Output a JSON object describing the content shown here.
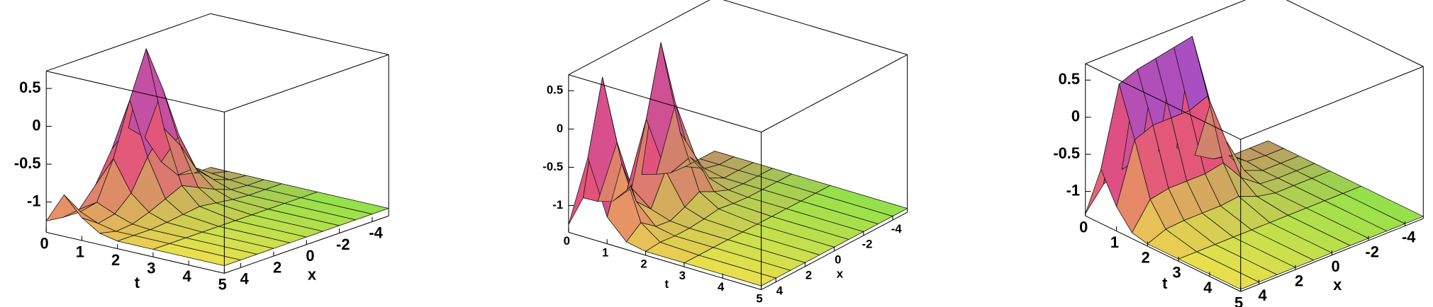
{
  "chart_data": [
    {
      "type": "surface",
      "tlabel": "t",
      "xlabel": "x",
      "tlim": [
        0,
        5
      ],
      "xlim": [
        -5,
        5
      ],
      "zlim": [
        -1.4,
        0.73
      ],
      "tticks": [
        0,
        1,
        2,
        3,
        4,
        5
      ],
      "xticks": [
        4,
        2,
        0,
        -2,
        -4
      ],
      "zticks": [
        0.5,
        0,
        -0.5,
        -1
      ],
      "colors": [
        "#8fe34a",
        "#ece24c",
        "#e4507c",
        "#8a4fe8"
      ],
      "t": [
        0,
        0.5,
        1,
        1.5,
        2,
        3,
        5
      ],
      "x": [
        5,
        4,
        3,
        2,
        1,
        0,
        -1,
        -2,
        -3,
        -4,
        -5
      ],
      "z": [
        [
          -1.25,
          -1.28,
          -1.25,
          -1.0,
          -0.6,
          -0.4,
          -0.6,
          -1.0,
          -1.25,
          -1.3,
          -1.3
        ],
        [
          -0.85,
          -1.15,
          -1.1,
          -0.6,
          0.1,
          0.7,
          0.1,
          -0.6,
          -1.1,
          -1.25,
          -1.3
        ],
        [
          -1.1,
          -1.25,
          -1.2,
          -1.0,
          -0.6,
          -0.3,
          -0.6,
          -1.0,
          -1.2,
          -1.28,
          -1.3
        ],
        [
          -1.25,
          -1.3,
          -1.28,
          -1.2,
          -1.1,
          -1.0,
          -1.1,
          -1.2,
          -1.28,
          -1.3,
          -1.3
        ],
        [
          -1.3,
          -1.3,
          -1.3,
          -1.28,
          -1.25,
          -1.22,
          -1.25,
          -1.28,
          -1.3,
          -1.3,
          -1.3
        ],
        [
          -1.3,
          -1.3,
          -1.3,
          -1.3,
          -1.3,
          -1.3,
          -1.3,
          -1.3,
          -1.3,
          -1.3,
          -1.3
        ],
        [
          -1.3,
          -1.3,
          -1.3,
          -1.3,
          -1.3,
          -1.3,
          -1.3,
          -1.3,
          -1.3,
          -1.3,
          -1.3
        ]
      ]
    },
    {
      "type": "surface",
      "tlabel": "t",
      "xlabel": "x",
      "tlim": [
        0,
        5
      ],
      "xlim": [
        -5,
        5
      ],
      "zlim": [
        -1.35,
        0.71
      ],
      "tticks": [
        0,
        1,
        2,
        3,
        4,
        5
      ],
      "xticks": [
        4,
        2,
        0,
        -2,
        -4
      ],
      "zticks": [
        0.5,
        0,
        -0.5,
        -1
      ],
      "colors": [
        "#8fe34a",
        "#ece24c",
        "#e4507c",
        "#8a4fe8"
      ],
      "t": [
        0,
        0.5,
        1,
        1.5,
        2,
        3,
        5
      ],
      "x": [
        5,
        4,
        3,
        2,
        1,
        0,
        -1,
        -2,
        -3,
        -4,
        -5
      ],
      "z": [
        [
          -1.25,
          -1.0,
          -1.15,
          -1.25,
          -1.2,
          -1.1,
          -1.2,
          -1.28,
          -1.3,
          -1.3,
          -1.3
        ],
        [
          -0.3,
          0.65,
          -0.3,
          -1.0,
          -0.2,
          0.7,
          -0.2,
          -1.0,
          -1.25,
          -1.3,
          -1.3
        ],
        [
          -1.0,
          -0.4,
          -1.0,
          -1.2,
          -0.8,
          -0.4,
          -0.8,
          -1.2,
          -1.3,
          -1.3,
          -1.3
        ],
        [
          -1.25,
          -1.1,
          -1.25,
          -1.28,
          -1.2,
          -1.1,
          -1.2,
          -1.28,
          -1.3,
          -1.3,
          -1.3
        ],
        [
          -1.3,
          -1.28,
          -1.3,
          -1.3,
          -1.28,
          -1.25,
          -1.28,
          -1.3,
          -1.3,
          -1.3,
          -1.3
        ],
        [
          -1.3,
          -1.3,
          -1.3,
          -1.3,
          -1.3,
          -1.3,
          -1.3,
          -1.3,
          -1.3,
          -1.3,
          -1.3
        ],
        [
          -1.3,
          -1.3,
          -1.3,
          -1.3,
          -1.3,
          -1.3,
          -1.3,
          -1.3,
          -1.3,
          -1.3,
          -1.3
        ]
      ]
    },
    {
      "type": "surface",
      "tlabel": "t",
      "xlabel": "x",
      "tlim": [
        0,
        5
      ],
      "xlim": [
        -5,
        5
      ],
      "zlim": [
        -1.33,
        0.72
      ],
      "tticks": [
        0,
        1,
        2,
        3,
        4,
        5
      ],
      "xticks": [
        4,
        2,
        0,
        -2,
        -4
      ],
      "zticks": [
        0.5,
        0,
        -0.5,
        -1
      ],
      "colors": [
        "#8fe34a",
        "#ece24c",
        "#e4507c",
        "#8a4fe8"
      ],
      "t": [
        0,
        0.5,
        1,
        1.5,
        2,
        3,
        5
      ],
      "x": [
        5,
        4,
        3,
        2,
        1,
        0,
        -1,
        -2,
        -3,
        -4,
        -5
      ],
      "z": [
        [
          -1.3,
          -1.0,
          -0.9,
          -0.85,
          -0.85,
          -0.9,
          -1.1,
          -1.25,
          -1.3,
          -1.3,
          -1.3
        ],
        [
          -0.6,
          0.45,
          0.55,
          0.6,
          0.65,
          0.7,
          -0.3,
          -1.1,
          -1.28,
          -1.3,
          -1.3
        ],
        [
          -1.0,
          -0.2,
          -0.1,
          -0.1,
          -0.1,
          0.0,
          -0.7,
          -1.2,
          -1.3,
          -1.3,
          -1.3
        ],
        [
          -1.25,
          -0.9,
          -0.85,
          -0.85,
          -0.85,
          -0.8,
          -1.1,
          -1.28,
          -1.3,
          -1.3,
          -1.3
        ],
        [
          -1.3,
          -1.2,
          -1.18,
          -1.18,
          -1.18,
          -1.15,
          -1.25,
          -1.3,
          -1.3,
          -1.3,
          -1.3
        ],
        [
          -1.3,
          -1.3,
          -1.3,
          -1.3,
          -1.3,
          -1.3,
          -1.3,
          -1.3,
          -1.3,
          -1.3,
          -1.3
        ],
        [
          -1.3,
          -1.3,
          -1.3,
          -1.3,
          -1.3,
          -1.3,
          -1.3,
          -1.3,
          -1.3,
          -1.3,
          -1.3
        ]
      ]
    }
  ]
}
